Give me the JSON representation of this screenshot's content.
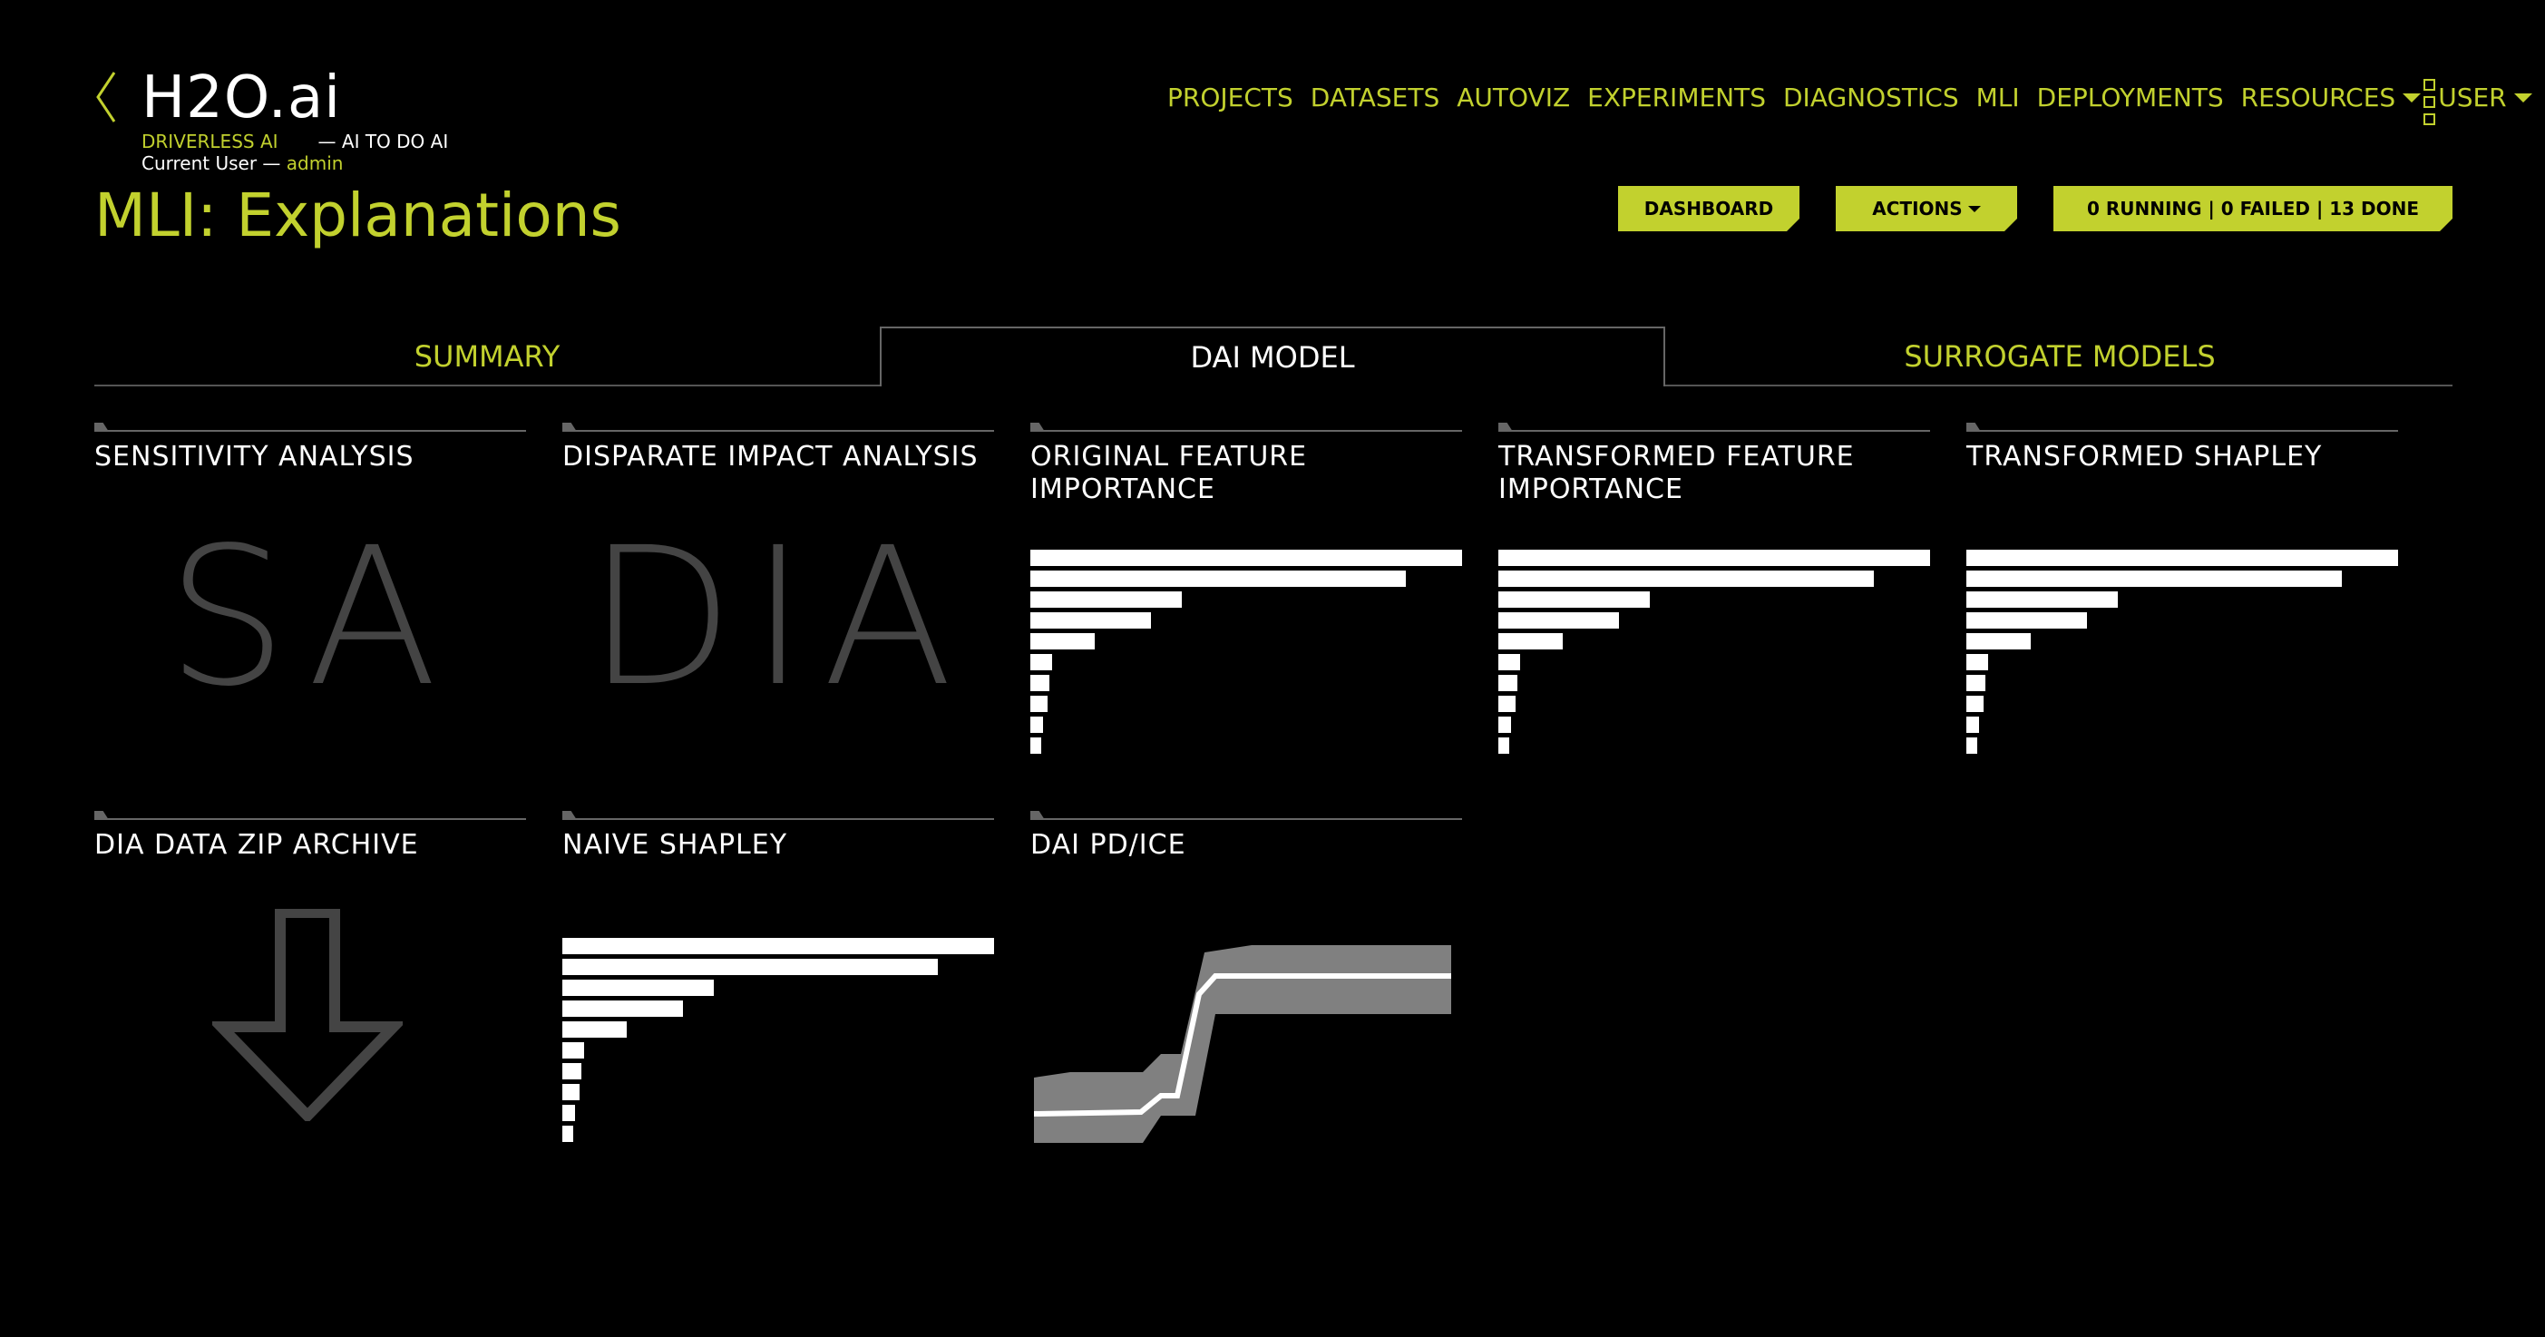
{
  "header": {
    "brand": "H2O.ai",
    "product": "DRIVERLESS AI",
    "tagline": "— AI TO DO AI",
    "current_user_label": "Current User —",
    "current_user": "admin"
  },
  "page_title": "MLI: Explanations",
  "nav": {
    "items": [
      "PROJECTS",
      "DATASETS",
      "AUTOVIZ",
      "EXPERIMENTS",
      "DIAGNOSTICS",
      "MLI",
      "DEPLOYMENTS"
    ],
    "resources": "RESOURCES",
    "user": "USER"
  },
  "buttons": {
    "dashboard": "DASHBOARD",
    "actions": "ACTIONS",
    "status": "0 RUNNING | 0 FAILED | 13 DONE"
  },
  "tabs": {
    "summary": "SUMMARY",
    "dai_model": "DAI MODEL",
    "surrogate": "SURROGATE MODELS",
    "active": "DAI MODEL"
  },
  "tiles": {
    "sa": {
      "title": "SENSITIVITY ANALYSIS",
      "abbr": "SA"
    },
    "dia": {
      "title": "DISPARATE IMPACT ANALYSIS",
      "abbr": "DIA"
    },
    "ofi": {
      "title": "ORIGINAL FEATURE IMPORTANCE"
    },
    "tfi": {
      "title": "TRANSFORMED FEATURE IMPORTANCE"
    },
    "ts": {
      "title": "TRANSFORMED SHAPLEY"
    },
    "zip": {
      "title": "DIA DATA ZIP ARCHIVE",
      "icon": "download-arrow-icon"
    },
    "ns": {
      "title": "NAIVE SHAPLEY"
    },
    "pdice": {
      "title": "DAI PD/ICE"
    }
  },
  "importance_bars": [
    1.0,
    0.87,
    0.35,
    0.28,
    0.15,
    0.05,
    0.045,
    0.04,
    0.03,
    0.025
  ],
  "colors": {
    "accent": "#c2d12e",
    "background": "#000000",
    "muted": "#444444"
  }
}
